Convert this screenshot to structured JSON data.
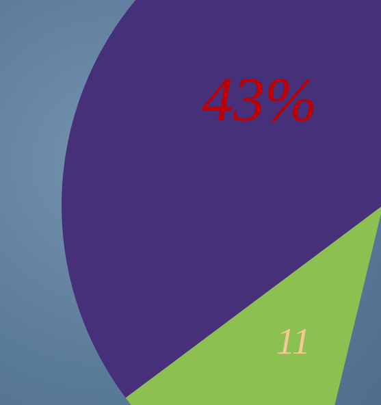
{
  "chart_data": {
    "type": "pie",
    "values": [
      43,
      11
    ],
    "value_labels": [
      "43%",
      "11"
    ],
    "colors": [
      "#46307a",
      "#8cc152"
    ],
    "data_labels": true
  }
}
